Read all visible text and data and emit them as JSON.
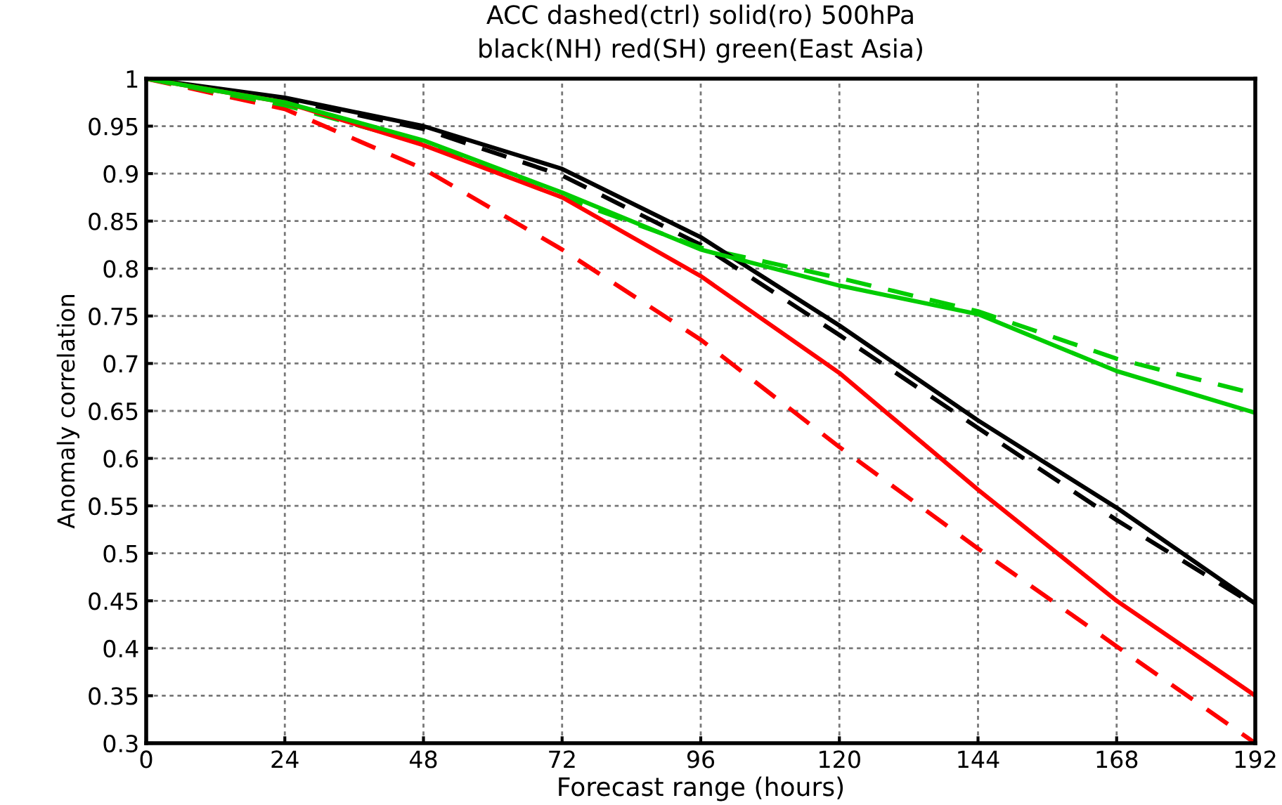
{
  "chart_data": {
    "type": "line",
    "title": "ACC dashed(ctrl) solid(ro) 500hPa",
    "subtitle": "black(NH) red(SH) green(East Asia)",
    "xlabel": "Forecast range (hours)",
    "ylabel": "Anomaly correlation",
    "x": [
      0,
      24,
      48,
      72,
      96,
      120,
      144,
      168,
      192
    ],
    "series": [
      {
        "color": "#000000",
        "line_style": "dashed",
        "values": [
          1,
          0.978,
          0.947,
          0.898,
          0.825,
          0.73,
          0.632,
          0.535,
          0.445
        ]
      },
      {
        "color": "#ff0000",
        "line_style": "dashed",
        "values": [
          1,
          0.968,
          0.905,
          0.82,
          0.725,
          0.612,
          0.505,
          0.402,
          0.3
        ]
      },
      {
        "color": "#00cc00",
        "line_style": "dashed",
        "values": [
          1,
          0.972,
          0.932,
          0.875,
          0.822,
          0.79,
          0.755,
          0.705,
          0.668
        ]
      },
      {
        "color": "#000000",
        "line_style": "solid",
        "values": [
          1,
          0.98,
          0.95,
          0.905,
          0.833,
          0.74,
          0.64,
          0.548,
          0.447
        ]
      },
      {
        "color": "#ff0000",
        "line_style": "solid",
        "values": [
          1,
          0.975,
          0.93,
          0.875,
          0.792,
          0.69,
          0.567,
          0.45,
          0.35
        ]
      },
      {
        "color": "#00cc00",
        "line_style": "solid",
        "values": [
          1,
          0.975,
          0.935,
          0.88,
          0.82,
          0.782,
          0.752,
          0.692,
          0.648
        ]
      }
    ],
    "xlim": [
      0,
      192
    ],
    "xticks": [
      0,
      24,
      48,
      72,
      96,
      120,
      144,
      168,
      192
    ],
    "ylim": [
      0.3,
      1
    ],
    "yticks": [
      0.3,
      0.35,
      0.4,
      0.45,
      0.5,
      0.55,
      0.6,
      0.65,
      0.7,
      0.75,
      0.8,
      0.85,
      0.9,
      0.95,
      1
    ],
    "grid": true,
    "marker": "none"
  }
}
